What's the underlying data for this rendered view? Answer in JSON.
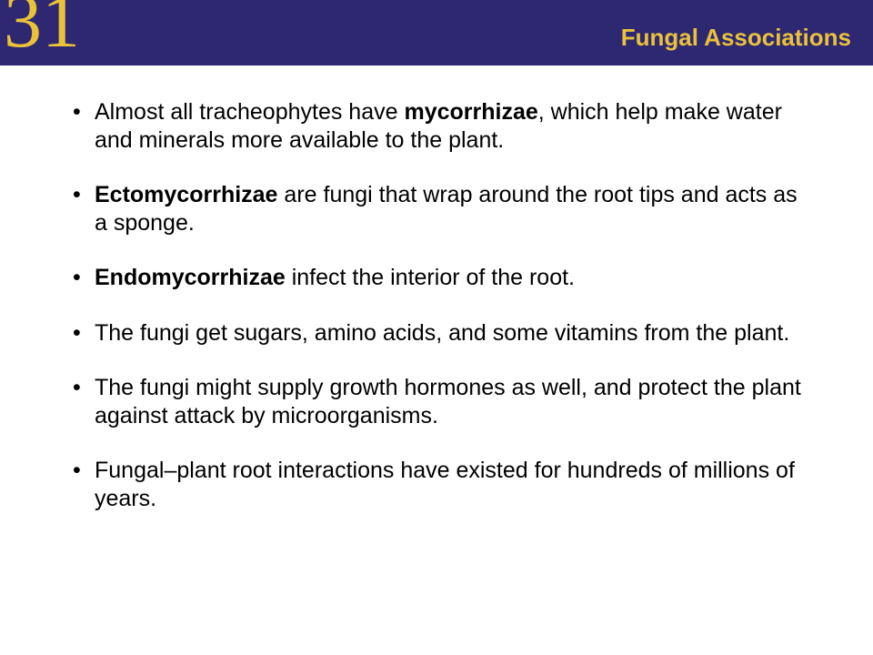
{
  "header": {
    "chapter_number": "31",
    "title": "Fungal Associations",
    "bar_color": "#2e2873",
    "accent_color": "#e9c23a"
  },
  "bullets": [
    {
      "pre": "Almost all tracheophytes have ",
      "bold": "mycorrhizae",
      "post": ", which help make water and minerals more available to the plant."
    },
    {
      "pre": "",
      "bold": "Ectomycorrhizae",
      "post": " are fungi that wrap around the root tips and acts as a sponge."
    },
    {
      "pre": "",
      "bold": "Endomycorrhizae",
      "post": " infect the interior of the root."
    },
    {
      "pre": "The fungi get sugars, amino acids, and some vitamins from the plant.",
      "bold": "",
      "post": ""
    },
    {
      "pre": "The fungi might supply growth hormones as well, and protect the plant against attack by microorganisms.",
      "bold": "",
      "post": ""
    },
    {
      "pre": "Fungal–plant root interactions have existed for hundreds of millions of years.",
      "bold": "",
      "post": ""
    }
  ],
  "style": {
    "body_fontsize": 25,
    "title_fontsize": 26,
    "chapter_fontsize": 84,
    "text_color": "#000000",
    "background_color": "#ffffff"
  }
}
